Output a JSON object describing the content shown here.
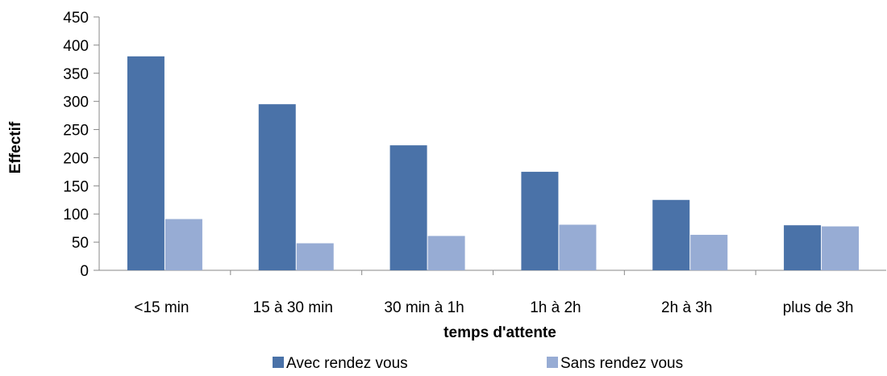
{
  "chart_data": {
    "type": "bar",
    "title": "",
    "xlabel": "temps d'attente",
    "ylabel": "Effectif",
    "ylim": [
      0,
      450
    ],
    "yticks": [
      0,
      50,
      100,
      150,
      200,
      250,
      300,
      350,
      400,
      450
    ],
    "grid": false,
    "legend_position": "bottom",
    "categories": [
      "<15 min",
      "15 à 30 min",
      "30 min à 1h",
      "1h à 2h",
      "2h à 3h",
      "plus de 3h"
    ],
    "series": [
      {
        "name": "Avec rendez vous",
        "color": "#4a72a8",
        "values": [
          380,
          295,
          222,
          175,
          125,
          80
        ]
      },
      {
        "name": "Sans rendez vous",
        "color": "#97acd4",
        "values": [
          91,
          48,
          61,
          81,
          63,
          78
        ]
      }
    ]
  }
}
